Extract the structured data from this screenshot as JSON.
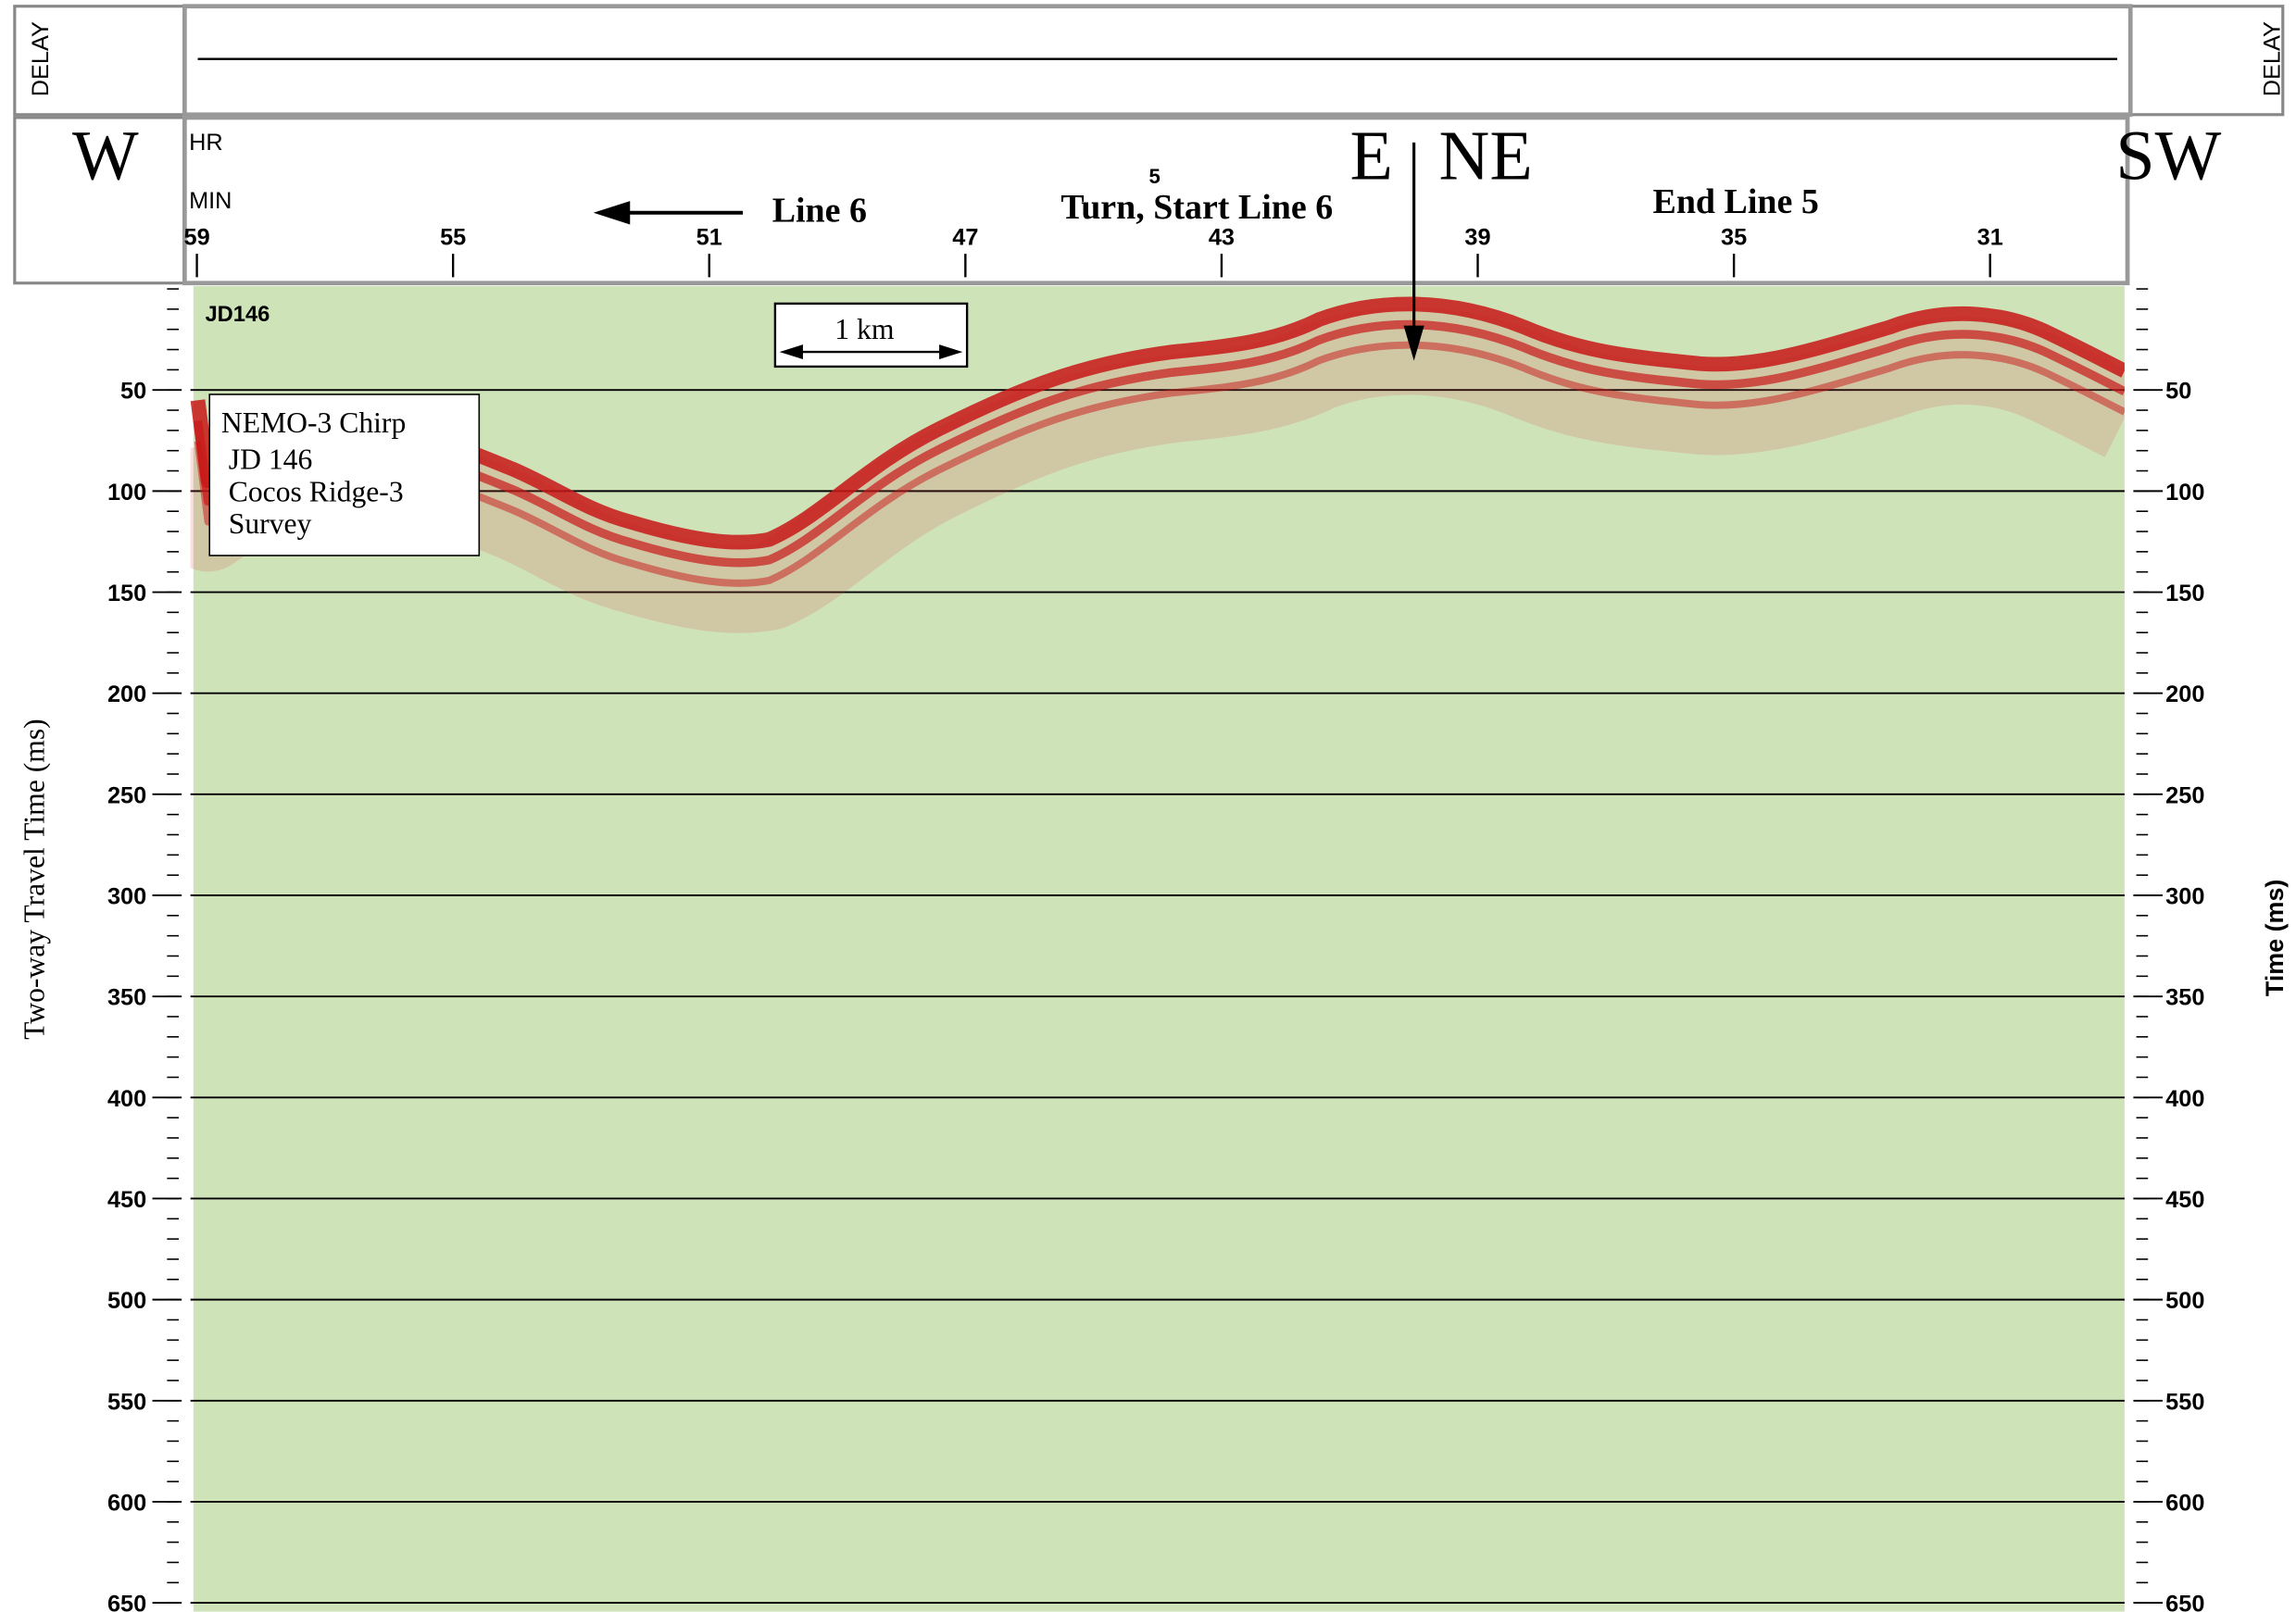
{
  "header": {
    "left_delay": "DELAY",
    "right_delay": "DELAY",
    "west": "W",
    "east": "E",
    "northeast": "NE",
    "southwest": "SW",
    "hr_label": "HR",
    "min_label": "MIN",
    "hour": "5"
  },
  "annotations": {
    "line6": "Line 6",
    "turn": "Turn, Start Line 6",
    "end_line5": "End Line 5",
    "day": "JD146",
    "scale_bar": "1 km"
  },
  "legend_box": [
    "NEMO-3 Chirp",
    "JD 146",
    "Cocos Ridge-3",
    "Survey"
  ],
  "time_axis": {
    "xlim": [
      59.1,
      28.9
    ],
    "xticks": [
      59,
      55,
      51,
      47,
      43,
      39,
      35,
      31
    ]
  },
  "depth_axis": {
    "left_label": "Two-way Travel Time (ms)",
    "right_label": "Time (ms)",
    "ylim": [
      0,
      650
    ],
    "yticks": [
      50,
      100,
      150,
      200,
      250,
      300,
      350,
      400,
      450,
      500,
      550,
      600,
      650
    ]
  }
}
